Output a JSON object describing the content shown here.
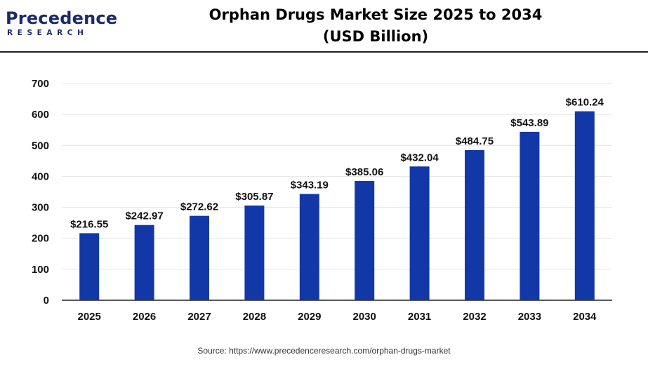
{
  "logo": {
    "word": "Precedence",
    "sub": "RESEARCH"
  },
  "title": {
    "line1": "Orphan Drugs Market Size 2025 to 2034",
    "line2": "(USD Billion)"
  },
  "source": "Source: https://www.precedenceresearch.com/orphan-drugs-market",
  "colors": {
    "bar": "#1238a8",
    "grid": "#e4e4e4",
    "axis": "#222222"
  },
  "chart_data": {
    "type": "bar",
    "title": "Orphan Drugs Market Size 2025 to 2034 (USD Billion)",
    "xlabel": "",
    "ylabel": "",
    "categories": [
      "2025",
      "2026",
      "2027",
      "2028",
      "2029",
      "2030",
      "2031",
      "2032",
      "2033",
      "2034"
    ],
    "values": [
      216.55,
      242.97,
      272.62,
      305.87,
      343.19,
      385.06,
      432.04,
      484.75,
      543.89,
      610.24
    ],
    "data_labels": [
      "$216.55",
      "$242.97",
      "$272.62",
      "$305.87",
      "$343.19",
      "$385.06",
      "$432.04",
      "$484.75",
      "$543.89",
      "$610.24"
    ],
    "ylim": [
      0,
      700
    ],
    "yticks": [
      0,
      100,
      200,
      300,
      400,
      500,
      600,
      700
    ],
    "grid": true,
    "legend": "none"
  }
}
